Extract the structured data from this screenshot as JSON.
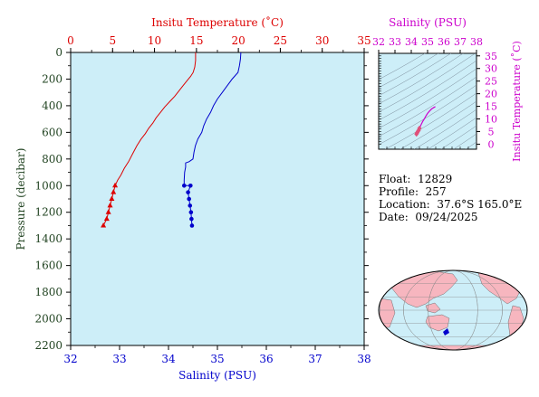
{
  "colors": {
    "temperature": "#dd0000",
    "salinity": "#0000cc",
    "pressure_axis": "#224422",
    "ts_axis": "#cc00cc",
    "plot_bg": "#cdeef8",
    "land": "#f7b6bf",
    "ocean": "#cdeef8"
  },
  "info": {
    "float_label": "Float:",
    "float_value": "12829",
    "profile_label": "Profile:",
    "profile_value": "257",
    "location_label": "Location:",
    "location_value": "37.6°S  165.0°E",
    "date_label": "Date:",
    "date_value": "09/24/2025"
  },
  "chart_data": [
    {
      "type": "line",
      "id": "profile",
      "top_axis_title": "Insitu Temperature (˚C)",
      "bottom_axis_title": "Salinity (PSU)",
      "left_axis_title": "Pressure (decibar)",
      "temperature_ticks": [
        0,
        5,
        10,
        15,
        20,
        25,
        30,
        35
      ],
      "temperature_range": [
        0,
        35
      ],
      "salinity_ticks": [
        32,
        33,
        34,
        35,
        36,
        37,
        38
      ],
      "salinity_range": [
        32,
        38
      ],
      "pressure_ticks": [
        0,
        200,
        400,
        600,
        800,
        1000,
        1200,
        1400,
        1600,
        1800,
        2000,
        2200
      ],
      "pressure_range": [
        0,
        2200
      ],
      "series": [
        {
          "variable": "temperature",
          "points": [
            [
              14.9,
              0
            ],
            [
              14.9,
              60
            ],
            [
              14.8,
              110
            ],
            [
              14.6,
              150
            ],
            [
              14.3,
              180
            ],
            [
              13.9,
              210
            ],
            [
              13.4,
              250
            ],
            [
              12.9,
              290
            ],
            [
              12.4,
              330
            ],
            [
              11.8,
              370
            ],
            [
              11.2,
              410
            ],
            [
              10.7,
              450
            ],
            [
              10.2,
              490
            ],
            [
              9.8,
              530
            ],
            [
              9.3,
              570
            ],
            [
              8.9,
              610
            ],
            [
              8.4,
              650
            ],
            [
              7.9,
              700
            ],
            [
              7.4,
              760
            ],
            [
              6.9,
              820
            ],
            [
              6.4,
              870
            ],
            [
              6.0,
              920
            ],
            [
              5.6,
              960
            ],
            [
              5.3,
              1000
            ]
          ],
          "deep_points": [
            [
              5.3,
              1000
            ],
            [
              5.1,
              1050
            ],
            [
              4.9,
              1100
            ],
            [
              4.7,
              1150
            ],
            [
              4.5,
              1200
            ],
            [
              4.3,
              1250
            ],
            [
              3.9,
              1300
            ]
          ]
        },
        {
          "variable": "salinity",
          "points": [
            [
              35.48,
              0
            ],
            [
              35.47,
              50
            ],
            [
              35.45,
              100
            ],
            [
              35.42,
              150
            ],
            [
              35.3,
              200
            ],
            [
              35.2,
              250
            ],
            [
              35.1,
              300
            ],
            [
              35.0,
              350
            ],
            [
              34.92,
              400
            ],
            [
              34.86,
              450
            ],
            [
              34.78,
              500
            ],
            [
              34.72,
              550
            ],
            [
              34.68,
              600
            ],
            [
              34.6,
              650
            ],
            [
              34.55,
              700
            ],
            [
              34.52,
              750
            ],
            [
              34.5,
              800
            ],
            [
              34.42,
              820
            ],
            [
              34.35,
              830
            ],
            [
              34.35,
              860
            ],
            [
              34.33,
              900
            ],
            [
              34.32,
              960
            ],
            [
              34.32,
              1000
            ]
          ],
          "deep_points": [
            [
              34.32,
              1000
            ],
            [
              34.45,
              1000
            ],
            [
              34.4,
              1050
            ],
            [
              34.42,
              1100
            ],
            [
              34.44,
              1150
            ],
            [
              34.46,
              1200
            ],
            [
              34.47,
              1250
            ],
            [
              34.48,
              1300
            ]
          ]
        }
      ],
      "grid": false
    },
    {
      "type": "scatter",
      "id": "ts_diagram",
      "top_axis_title": "Salinity (PSU)",
      "right_axis_title": "Insitu Temperature (˚C)",
      "salinity_ticks": [
        32,
        33,
        34,
        35,
        36,
        37,
        38
      ],
      "salinity_range": [
        32,
        38
      ],
      "temperature_ticks": [
        0,
        5,
        10,
        15,
        20,
        25,
        30,
        35
      ],
      "temperature_range": [
        -2,
        36
      ],
      "ts_points": [
        [
          34.32,
          4.0
        ],
        [
          34.36,
          4.5
        ],
        [
          34.4,
          5.0
        ],
        [
          34.45,
          5.5
        ],
        [
          34.5,
          6.3
        ],
        [
          34.55,
          7.0
        ],
        [
          34.62,
          8.0
        ],
        [
          34.7,
          9.0
        ],
        [
          34.8,
          10.0
        ],
        [
          34.9,
          11.2
        ],
        [
          35.0,
          12.2
        ],
        [
          35.1,
          13.0
        ],
        [
          35.25,
          14.0
        ],
        [
          35.4,
          14.6
        ],
        [
          35.48,
          14.9
        ]
      ]
    }
  ]
}
